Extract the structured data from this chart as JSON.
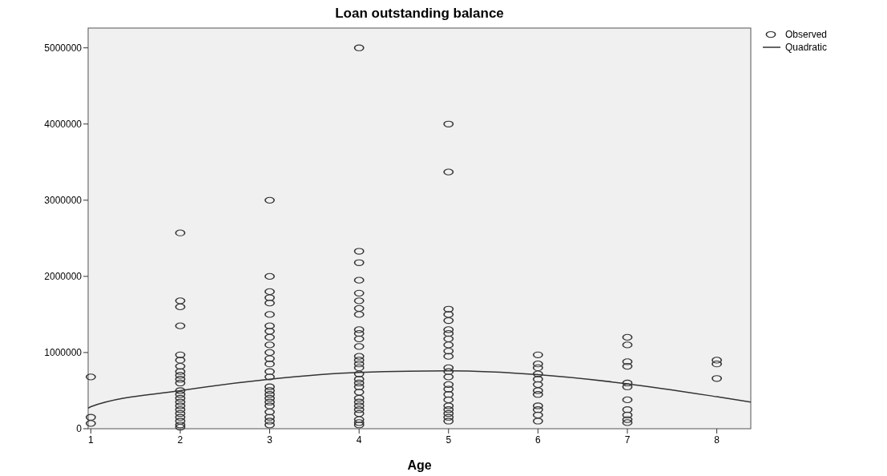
{
  "chart_data": {
    "type": "scatter",
    "title": "Loan outstanding balance",
    "xlabel": "Age",
    "xlim": [
      0.97,
      8.38
    ],
    "xticks": [
      1,
      2,
      3,
      4,
      5,
      6,
      7,
      8
    ],
    "ylim": [
      0,
      5260000
    ],
    "yticks": [
      0,
      1000000,
      2000000,
      3000000,
      4000000,
      5000000
    ],
    "grid": false,
    "legend": "top right",
    "series": [
      {
        "name": "Observed",
        "marker": "circle",
        "color": "#333333",
        "x": [
          1,
          1,
          1,
          2,
          2,
          2,
          2,
          2,
          2,
          2,
          2,
          2,
          2,
          2,
          2,
          2,
          2,
          2,
          2,
          2,
          2,
          2,
          2,
          2,
          2,
          3,
          3,
          3,
          3,
          3,
          3,
          3,
          3,
          3,
          3,
          3,
          3,
          3,
          3,
          3,
          3,
          3,
          3,
          3,
          3,
          3,
          3,
          3,
          3,
          3,
          4,
          4,
          4,
          4,
          4,
          4,
          4,
          4,
          4,
          4,
          4,
          4,
          4,
          4,
          4,
          4,
          4,
          4,
          4,
          4,
          4,
          4,
          4,
          4,
          4,
          4,
          4,
          4,
          4,
          5,
          5,
          5,
          5,
          5,
          5,
          5,
          5,
          5,
          5,
          5,
          5,
          5,
          5,
          5,
          5,
          5,
          5,
          5,
          5,
          5,
          5,
          5,
          6,
          6,
          6,
          6,
          6,
          6,
          6,
          6,
          6,
          6,
          6,
          6,
          7,
          7,
          7,
          7,
          7,
          7,
          7,
          7,
          7,
          7,
          7,
          8,
          8,
          8
        ],
        "values": [
          680000,
          150000,
          70000,
          2570000,
          1680000,
          1600000,
          1350000,
          970000,
          900000,
          820000,
          750000,
          700000,
          650000,
          600000,
          500000,
          450000,
          400000,
          350000,
          300000,
          250000,
          200000,
          150000,
          100000,
          50000,
          20000,
          3000000,
          2000000,
          1800000,
          1720000,
          1650000,
          1500000,
          1350000,
          1280000,
          1200000,
          1100000,
          1000000,
          920000,
          850000,
          750000,
          680000,
          550000,
          500000,
          450000,
          400000,
          350000,
          300000,
          220000,
          150000,
          100000,
          50000,
          5000000,
          2330000,
          2180000,
          1950000,
          1780000,
          1680000,
          1580000,
          1500000,
          1300000,
          1250000,
          1180000,
          1080000,
          950000,
          900000,
          850000,
          800000,
          720000,
          650000,
          600000,
          550000,
          480000,
          400000,
          350000,
          300000,
          250000,
          200000,
          120000,
          80000,
          50000,
          4000000,
          3370000,
          1570000,
          1500000,
          1420000,
          1300000,
          1250000,
          1180000,
          1100000,
          1020000,
          950000,
          800000,
          750000,
          680000,
          580000,
          520000,
          450000,
          380000,
          300000,
          250000,
          200000,
          150000,
          100000,
          970000,
          850000,
          800000,
          720000,
          650000,
          580000,
          500000,
          450000,
          300000,
          250000,
          180000,
          100000,
          1200000,
          1100000,
          880000,
          820000,
          600000,
          550000,
          380000,
          250000,
          180000,
          120000,
          80000,
          900000,
          850000,
          660000
        ]
      },
      {
        "name": "Quadratic",
        "type": "line",
        "line_style": "solid",
        "color": "#333333",
        "x": [
          0.97,
          1,
          2,
          3,
          4,
          5,
          6,
          7,
          8,
          8.38
        ],
        "values": [
          270000,
          290000,
          500000,
          650000,
          740000,
          760000,
          710000,
          590000,
          420000,
          350000
        ]
      }
    ]
  }
}
